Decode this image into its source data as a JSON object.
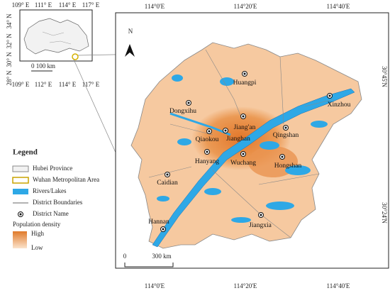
{
  "inset": {
    "top_ticks": [
      "109° E",
      "111° E",
      "114° E",
      "117° E"
    ],
    "bottom_ticks": [
      "109° E",
      "112° E",
      "114° E",
      "117° E"
    ],
    "left_ticks": [
      "34° N",
      "32° N",
      "30° N",
      "28° N"
    ],
    "scale": "0 100 km"
  },
  "main_map": {
    "top_ticks": [
      "114°0'E",
      "114°20'E",
      "114°40'E"
    ],
    "bottom_ticks": [
      "114°0'E",
      "114°20'E",
      "114°40'E"
    ],
    "right_ticks": [
      "30°45'N",
      "30°24'N"
    ],
    "north": "N",
    "scale_start": "0",
    "scale_end": "300 km",
    "districts": [
      "Huangpi",
      "Xinzhou",
      "Dongxihu",
      "Jiang'an",
      "Qiaokou",
      "Jianghan",
      "Qingshan",
      "Hanyang",
      "Wuchang",
      "Hongshan",
      "Caidian",
      "Jiangxia",
      "Hannan"
    ]
  },
  "legend": {
    "title": "Legend",
    "items": [
      "Hubei Province",
      "Wuhan Metropolitan Area",
      "Rivers/Lakes",
      "District Boundaries",
      "District Name"
    ],
    "density_title": "Population density",
    "high": "High",
    "low": "Low"
  }
}
